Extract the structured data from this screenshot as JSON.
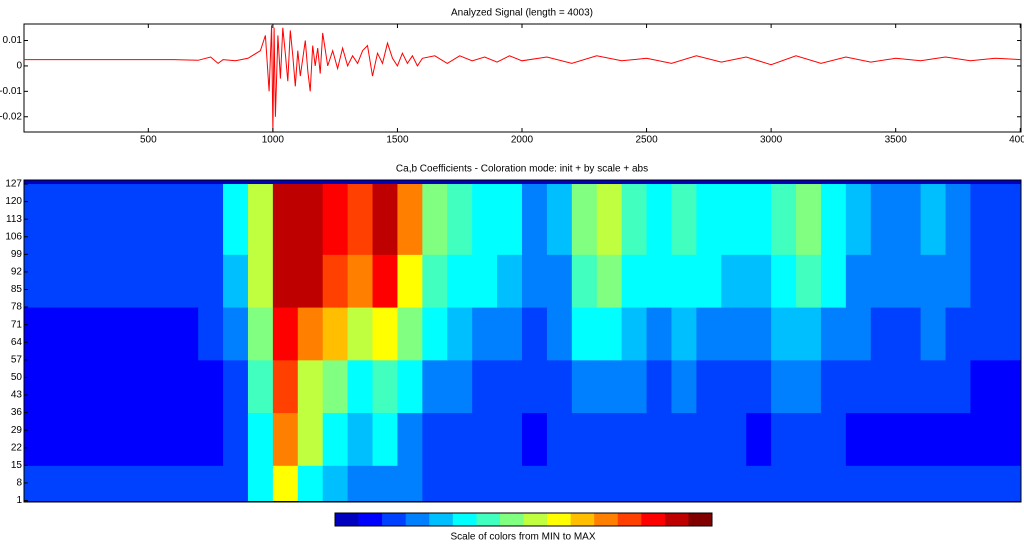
{
  "chart_data": [
    {
      "type": "line",
      "title": "Analyzed Signal (length = 4003)",
      "color": "#ff0000",
      "x": [
        0,
        200,
        400,
        600,
        700,
        750,
        780,
        800,
        850,
        900,
        950,
        970,
        985,
        995,
        1000,
        1005,
        1010,
        1020,
        1030,
        1040,
        1050,
        1060,
        1070,
        1080,
        1090,
        1100,
        1110,
        1120,
        1130,
        1140,
        1150,
        1160,
        1170,
        1180,
        1190,
        1200,
        1220,
        1240,
        1260,
        1280,
        1300,
        1320,
        1340,
        1360,
        1380,
        1400,
        1420,
        1440,
        1460,
        1480,
        1500,
        1520,
        1540,
        1560,
        1580,
        1600,
        1650,
        1700,
        1750,
        1800,
        1850,
        1900,
        1950,
        2000,
        2100,
        2200,
        2300,
        2400,
        2500,
        2600,
        2700,
        2800,
        2900,
        3000,
        3100,
        3200,
        3300,
        3400,
        3500,
        3600,
        3700,
        3800,
        3900,
        4003
      ],
      "values": [
        0.0025,
        0.0025,
        0.0025,
        0.0025,
        0.0022,
        0.0035,
        0.001,
        0.0025,
        0.002,
        0.003,
        0.006,
        0.012,
        -0.01,
        0.016,
        -0.026,
        0.015,
        -0.02,
        0.012,
        -0.005,
        0.015,
        0.005,
        -0.006,
        0.014,
        0.004,
        -0.008,
        0.006,
        -0.004,
        0.003,
        0.01,
        -0.002,
        -0.01,
        0.008,
        0.0,
        0.007,
        -0.003,
        0.013,
        0.0,
        0.006,
        -0.001,
        0.007,
        0.0,
        0.004,
        0.001,
        0.006,
        0.008,
        -0.004,
        0.005,
        0.001,
        0.009,
        0.003,
        0.0,
        0.005,
        0.001,
        0.004,
        0.0,
        0.003,
        0.004,
        0.001,
        0.004,
        0.002,
        0.0035,
        0.0015,
        0.004,
        0.002,
        0.0035,
        0.001,
        0.004,
        0.002,
        0.003,
        0.001,
        0.004,
        0.0015,
        0.0035,
        0.0005,
        0.004,
        0.001,
        0.0035,
        0.0015,
        0.003,
        0.002,
        0.0035,
        0.002,
        0.003,
        0.0025
      ],
      "xlim": [
        1,
        4003
      ],
      "xticks": [
        500,
        1000,
        1500,
        2000,
        2500,
        3000,
        3500,
        4000
      ],
      "ylim": [
        -0.026,
        0.0165
      ],
      "yticks": [
        0.01,
        0,
        -0.01,
        -0.02
      ]
    },
    {
      "type": "heatmap",
      "title": "Ca,b Coefficients - Coloration mode: init + by scale + abs",
      "xbins": [
        0,
        100,
        200,
        300,
        400,
        500,
        600,
        700,
        800,
        900,
        1000,
        1100,
        1200,
        1300,
        1400,
        1500,
        1600,
        1700,
        1800,
        1900,
        2000,
        2100,
        2200,
        2300,
        2400,
        2500,
        2600,
        2700,
        2800,
        2900,
        3000,
        3100,
        3200,
        3300,
        3400,
        3500,
        3600,
        3700,
        3800,
        3900,
        4000
      ],
      "ybins": [
        1,
        15,
        36,
        57,
        78,
        99,
        127
      ],
      "values": [
        [
          0.15,
          0.12,
          0.1,
          0.1,
          0.1,
          0.1,
          0.1,
          0.12,
          0.15,
          0.3,
          0.6,
          0.35,
          0.25,
          0.2,
          0.22,
          0.18,
          0.15,
          0.12,
          0.12,
          0.1,
          0.1,
          0.1,
          0.1,
          0.1,
          0.1,
          0.1,
          0.1,
          0.1,
          0.1,
          0.1,
          0.1,
          0.1,
          0.1,
          0.1,
          0.1,
          0.1,
          0.1,
          0.1,
          0.12,
          0.15
        ],
        [
          0.05,
          0.05,
          0.05,
          0.05,
          0.05,
          0.05,
          0.05,
          0.06,
          0.1,
          0.35,
          0.75,
          0.5,
          0.35,
          0.25,
          0.3,
          0.2,
          0.15,
          0.12,
          0.1,
          0.1,
          0.08,
          0.1,
          0.12,
          0.14,
          0.12,
          0.1,
          0.12,
          0.1,
          0.1,
          0.08,
          0.12,
          0.12,
          0.1,
          0.08,
          0.08,
          0.08,
          0.08,
          0.08,
          0.06,
          0.06
        ],
        [
          0.06,
          0.06,
          0.06,
          0.06,
          0.06,
          0.06,
          0.06,
          0.08,
          0.15,
          0.4,
          0.8,
          0.55,
          0.45,
          0.35,
          0.4,
          0.3,
          0.22,
          0.18,
          0.15,
          0.15,
          0.12,
          0.14,
          0.2,
          0.22,
          0.18,
          0.15,
          0.18,
          0.15,
          0.14,
          0.12,
          0.18,
          0.2,
          0.15,
          0.12,
          0.1,
          0.1,
          0.12,
          0.1,
          0.08,
          0.08
        ],
        [
          0.08,
          0.08,
          0.08,
          0.08,
          0.08,
          0.08,
          0.08,
          0.1,
          0.2,
          0.45,
          0.85,
          0.7,
          0.65,
          0.55,
          0.6,
          0.45,
          0.3,
          0.25,
          0.22,
          0.2,
          0.15,
          0.18,
          0.3,
          0.32,
          0.25,
          0.22,
          0.25,
          0.22,
          0.2,
          0.18,
          0.25,
          0.28,
          0.22,
          0.18,
          0.15,
          0.15,
          0.18,
          0.15,
          0.1,
          0.1
        ],
        [
          0.1,
          0.1,
          0.1,
          0.1,
          0.1,
          0.1,
          0.1,
          0.12,
          0.25,
          0.5,
          0.9,
          0.95,
          0.8,
          0.75,
          0.85,
          0.6,
          0.4,
          0.35,
          0.3,
          0.25,
          0.18,
          0.22,
          0.4,
          0.45,
          0.35,
          0.3,
          0.35,
          0.3,
          0.25,
          0.25,
          0.35,
          0.4,
          0.3,
          0.22,
          0.18,
          0.18,
          0.22,
          0.18,
          0.12,
          0.12
        ],
        [
          0.12,
          0.1,
          0.1,
          0.1,
          0.1,
          0.1,
          0.12,
          0.15,
          0.3,
          0.55,
          0.95,
          0.9,
          0.85,
          0.8,
          0.9,
          0.7,
          0.45,
          0.4,
          0.35,
          0.3,
          0.2,
          0.25,
          0.45,
          0.5,
          0.4,
          0.35,
          0.4,
          0.35,
          0.3,
          0.3,
          0.4,
          0.45,
          0.35,
          0.25,
          0.2,
          0.2,
          0.25,
          0.2,
          0.15,
          0.15
        ]
      ],
      "clim": [
        0,
        1
      ],
      "colormap": [
        "#0000bf",
        "#0000ff",
        "#0040ff",
        "#0080ff",
        "#00bfff",
        "#00ffff",
        "#40ffbf",
        "#80ff80",
        "#bfff40",
        "#ffff00",
        "#ffbf00",
        "#ff8000",
        "#ff4000",
        "#ff0000",
        "#bf0000",
        "#800000"
      ],
      "xlim": [
        1,
        4003
      ],
      "ylim": [
        0.4,
        128.6
      ],
      "yticks": [
        1,
        8,
        15,
        22,
        29,
        36,
        43,
        50,
        57,
        64,
        71,
        78,
        85,
        92,
        99,
        106,
        113,
        120,
        127
      ],
      "colorbar_label": "Scale of colors from MIN to MAX"
    }
  ]
}
